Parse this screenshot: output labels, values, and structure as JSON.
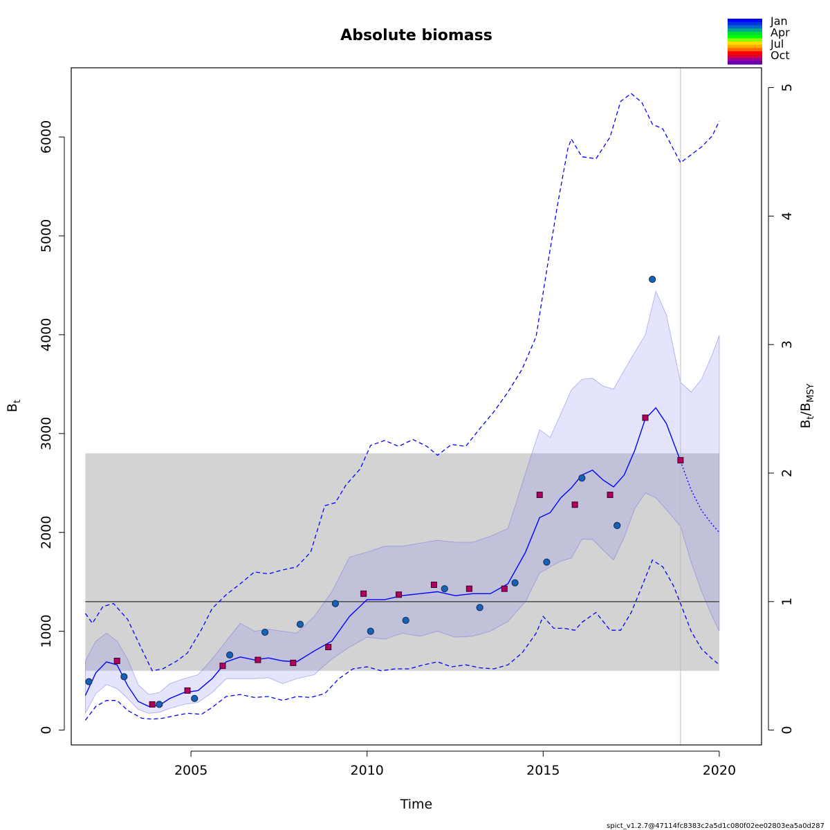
{
  "chart_data": {
    "type": "line",
    "title": "Absolute biomass",
    "xlabel": "Time",
    "ylabel_left": {
      "main": "B",
      "sub": "t"
    },
    "ylabel_right": {
      "main1": "B",
      "sub1": "t",
      "sep": "/",
      "main2": "B",
      "sub2": "MSY"
    },
    "xlim": [
      2001.6,
      2021.2
    ],
    "ylim_left": [
      -150,
      6700
    ],
    "ylim_right": [
      0,
      5
    ],
    "bmsy": 1300,
    "x_ticks": [
      2005,
      2010,
      2015,
      2020
    ],
    "y_ticks_left": [
      0,
      1000,
      2000,
      3000,
      4000,
      5000,
      6000
    ],
    "y_ticks_right": [
      0,
      1,
      2,
      3,
      4,
      5
    ],
    "bmsy_band": {
      "x_start": 2002.0,
      "x_end": 2020.0,
      "lower": 600,
      "upper": 2800
    },
    "reference_line_x": 2018.9,
    "month_legend": {
      "labels": [
        "Jan",
        "Apr",
        "Jul",
        "Oct"
      ],
      "colors": [
        "#0000ff",
        "#0033dd",
        "#0066cc",
        "#00aa88",
        "#00dd33",
        "#00ff00",
        "#88ff00",
        "#ffdd00",
        "#ffaa00",
        "#ff6600",
        "#ff0000",
        "#dd0033",
        "#990099",
        "#6600aa"
      ]
    },
    "footer": "spict_v1.2.7@47114fc8383c2a5d1c080f02ee02803ea5a0d287",
    "series": [
      {
        "name": "Estimated biomass",
        "x": [
          2002.0,
          2002.3,
          2002.6,
          2002.9,
          2003.2,
          2003.5,
          2003.8,
          2004.1,
          2004.4,
          2004.8,
          2005.2,
          2005.6,
          2006.0,
          2006.4,
          2006.8,
          2007.2,
          2007.6,
          2008.0,
          2008.5,
          2009.0,
          2009.5,
          2010.0,
          2010.5,
          2011.0,
          2011.5,
          2012.0,
          2012.5,
          2013.0,
          2013.5,
          2014.0,
          2014.5,
          2014.9,
          2015.2,
          2015.5,
          2015.8,
          2016.1,
          2016.4,
          2016.7,
          2017.0,
          2017.3,
          2017.6,
          2017.9,
          2018.2,
          2018.5,
          2018.9
        ],
        "values": [
          350,
          580,
          690,
          660,
          450,
          290,
          240,
          250,
          320,
          380,
          400,
          520,
          690,
          740,
          710,
          730,
          700,
          690,
          800,
          900,
          1150,
          1320,
          1320,
          1360,
          1380,
          1400,
          1360,
          1380,
          1380,
          1480,
          1800,
          2150,
          2200,
          2350,
          2450,
          2580,
          2630,
          2530,
          2460,
          2580,
          2830,
          3150,
          3260,
          3100,
          2720
        ]
      },
      {
        "name": "Predicted biomass",
        "x": [
          2018.9,
          2019.2,
          2019.5,
          2019.8,
          2020.0
        ],
        "values": [
          2720,
          2430,
          2220,
          2080,
          2000
        ]
      },
      {
        "name": "95% CI band upper",
        "x": [
          2002.0,
          2002.3,
          2002.6,
          2002.9,
          2003.2,
          2003.5,
          2003.8,
          2004.1,
          2004.4,
          2004.8,
          2005.2,
          2005.6,
          2006.0,
          2006.4,
          2006.8,
          2007.2,
          2007.6,
          2008.0,
          2008.5,
          2009.0,
          2009.5,
          2010.0,
          2010.5,
          2011.0,
          2011.5,
          2012.0,
          2012.5,
          2013.0,
          2013.5,
          2014.0,
          2014.5,
          2014.9,
          2015.2,
          2015.5,
          2015.8,
          2016.1,
          2016.4,
          2016.7,
          2017.0,
          2017.3,
          2017.6,
          2017.9,
          2018.2,
          2018.5,
          2018.9,
          2019.2,
          2019.5,
          2019.8,
          2020.0
        ],
        "values": [
          700,
          900,
          980,
          900,
          720,
          460,
          360,
          380,
          470,
          520,
          560,
          720,
          900,
          1080,
          1000,
          1020,
          1000,
          980,
          1150,
          1400,
          1750,
          1800,
          1860,
          1860,
          1890,
          1920,
          1900,
          1900,
          1960,
          2040,
          2600,
          3040,
          2960,
          3200,
          3440,
          3550,
          3560,
          3480,
          3450,
          3640,
          3820,
          4000,
          4440,
          4200,
          3520,
          3420,
          3550,
          3800,
          3990
        ]
      },
      {
        "name": "95% CI band lower",
        "x": [
          2002.0,
          2002.3,
          2002.6,
          2002.9,
          2003.2,
          2003.5,
          2003.8,
          2004.1,
          2004.4,
          2004.8,
          2005.2,
          2005.6,
          2006.0,
          2006.4,
          2006.8,
          2007.2,
          2007.6,
          2008.0,
          2008.5,
          2009.0,
          2009.5,
          2010.0,
          2010.5,
          2011.0,
          2011.5,
          2012.0,
          2012.5,
          2013.0,
          2013.5,
          2014.0,
          2014.5,
          2014.9,
          2015.2,
          2015.5,
          2015.8,
          2016.1,
          2016.4,
          2016.7,
          2017.0,
          2017.3,
          2017.6,
          2017.9,
          2018.2,
          2018.5,
          2018.9,
          2019.2,
          2019.5,
          2019.8,
          2020.0
        ],
        "values": [
          170,
          370,
          460,
          420,
          320,
          210,
          170,
          180,
          220,
          260,
          280,
          380,
          520,
          520,
          520,
          530,
          470,
          520,
          560,
          720,
          840,
          940,
          920,
          980,
          950,
          1000,
          940,
          950,
          1000,
          1100,
          1300,
          1590,
          1650,
          1710,
          1740,
          1930,
          1930,
          1820,
          1720,
          1950,
          2240,
          2400,
          2350,
          2230,
          2060,
          1700,
          1400,
          1150,
          1000
        ]
      },
      {
        "name": "95% CI upper (dashed)",
        "x": [
          2002.0,
          2002.2,
          2002.5,
          2002.8,
          2003.2,
          2003.6,
          2003.9,
          2004.2,
          2004.6,
          2004.9,
          2005.3,
          2005.6,
          2006.0,
          2006.4,
          2006.8,
          2007.2,
          2007.6,
          2008.0,
          2008.4,
          2008.8,
          2009.1,
          2009.4,
          2009.8,
          2010.1,
          2010.5,
          2010.9,
          2011.3,
          2011.7,
          2012.0,
          2012.4,
          2012.8,
          2013.2,
          2013.6,
          2014.0,
          2014.4,
          2014.8,
          2015.1,
          2015.4,
          2015.7,
          2015.8,
          2016.1,
          2016.5,
          2016.9,
          2017.2,
          2017.5,
          2017.8,
          2018.1,
          2018.4,
          2018.9,
          2019.2,
          2019.5,
          2019.8,
          2020.0
        ],
        "values": [
          1180,
          1080,
          1250,
          1280,
          1120,
          820,
          600,
          620,
          700,
          780,
          1020,
          1230,
          1370,
          1480,
          1600,
          1580,
          1620,
          1650,
          1800,
          2270,
          2300,
          2480,
          2640,
          2880,
          2930,
          2870,
          2940,
          2870,
          2780,
          2890,
          2870,
          3050,
          3220,
          3420,
          3650,
          3980,
          4650,
          5300,
          5880,
          5980,
          5800,
          5780,
          6000,
          6360,
          6440,
          6350,
          6130,
          6080,
          5740,
          5820,
          5900,
          6010,
          6160
        ]
      },
      {
        "name": "95% CI lower (dashed)",
        "x": [
          2002.0,
          2002.3,
          2002.6,
          2002.9,
          2003.2,
          2003.6,
          2003.9,
          2004.2,
          2004.6,
          2004.9,
          2005.3,
          2005.6,
          2006.0,
          2006.4,
          2006.8,
          2007.2,
          2007.6,
          2008.0,
          2008.4,
          2008.8,
          2009.2,
          2009.6,
          2010.0,
          2010.4,
          2010.8,
          2011.2,
          2011.6,
          2012.0,
          2012.4,
          2012.8,
          2013.2,
          2013.6,
          2014.0,
          2014.4,
          2014.8,
          2015.0,
          2015.3,
          2015.6,
          2015.9,
          2016.1,
          2016.5,
          2016.9,
          2017.2,
          2017.5,
          2017.8,
          2018.1,
          2018.4,
          2018.7,
          2018.9,
          2019.2,
          2019.5,
          2019.8,
          2020.0
        ],
        "values": [
          100,
          240,
          300,
          300,
          200,
          120,
          110,
          120,
          150,
          170,
          160,
          230,
          340,
          360,
          330,
          340,
          300,
          340,
          330,
          370,
          520,
          620,
          640,
          600,
          620,
          620,
          660,
          690,
          640,
          660,
          630,
          620,
          660,
          780,
          980,
          1150,
          1030,
          1030,
          1010,
          1090,
          1190,
          1010,
          1010,
          1190,
          1450,
          1720,
          1650,
          1460,
          1280,
          1000,
          820,
          720,
          660
        ]
      }
    ],
    "observations_circles": {
      "marker": "circle",
      "color": "#1861b5",
      "x": [
        2002.1,
        2003.1,
        2004.1,
        2005.1,
        2006.1,
        2007.1,
        2008.1,
        2009.1,
        2010.1,
        2011.1,
        2012.2,
        2013.2,
        2014.2,
        2015.1,
        2016.1,
        2017.1,
        2018.1
      ],
      "y": [
        490,
        540,
        260,
        320,
        760,
        990,
        1070,
        1280,
        1000,
        1110,
        1430,
        1240,
        1490,
        1700,
        2550,
        2070,
        4560
      ]
    },
    "observations_squares": {
      "marker": "square",
      "color": "#b0005f",
      "x": [
        2002.9,
        2003.9,
        2004.9,
        2005.9,
        2006.9,
        2007.9,
        2008.9,
        2009.9,
        2010.9,
        2011.9,
        2012.9,
        2013.9,
        2014.9,
        2015.9,
        2016.9,
        2017.9,
        2018.9
      ],
      "y": [
        700,
        260,
        400,
        650,
        710,
        680,
        840,
        1380,
        1370,
        1470,
        1430,
        1430,
        2380,
        2280,
        2380,
        3160,
        2730
      ]
    }
  }
}
